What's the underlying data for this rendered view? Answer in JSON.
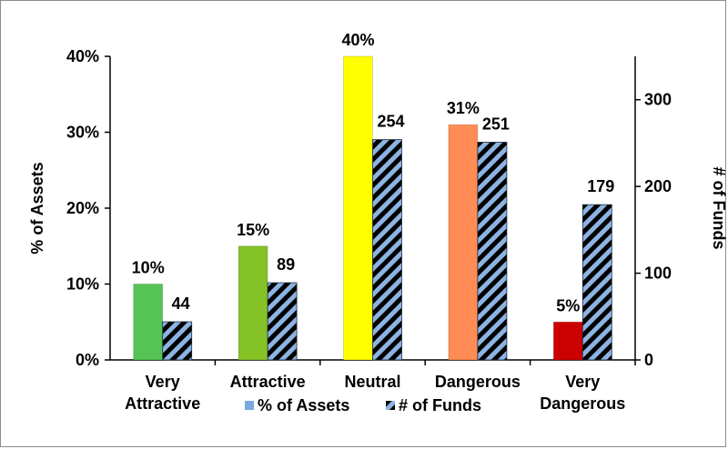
{
  "chart_data": {
    "type": "bar",
    "categories": [
      [
        "Very",
        "Attractive"
      ],
      [
        "Attractive"
      ],
      [
        "Neutral"
      ],
      [
        "Dangerous"
      ],
      [
        "Very",
        "Dangerous"
      ]
    ],
    "series": [
      {
        "name": "% of Assets",
        "axis": "left",
        "values": [
          10,
          15,
          40,
          31,
          5
        ],
        "labels": [
          "10%",
          "15%",
          "40%",
          "31%",
          "5%"
        ],
        "colors": [
          "#55c455",
          "#85c226",
          "#ffff00",
          "#ff8c55",
          "#cc0000"
        ],
        "legend_color": "#7aa9e3"
      },
      {
        "name": "# of Funds",
        "axis": "right",
        "values": [
          44,
          89,
          254,
          251,
          179
        ],
        "labels": [
          "44",
          "89",
          "254",
          "251",
          "179"
        ],
        "pattern": "diagonal-stripes",
        "pattern_colors": [
          "#000000",
          "#8db3e2"
        ]
      }
    ],
    "ylabel": "% of Assets",
    "y2label": "# of Funds",
    "ylim": [
      0,
      40
    ],
    "y2lim": [
      0,
      350
    ],
    "yticks": [
      "0%",
      "10%",
      "20%",
      "30%",
      "40%"
    ],
    "y2ticks": [
      "0",
      "100",
      "200",
      "300"
    ],
    "legend": "bottom"
  }
}
